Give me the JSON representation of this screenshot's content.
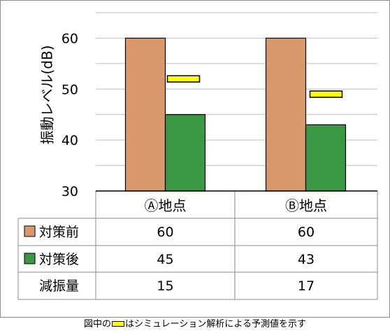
{
  "chart_data": {
    "type": "bar",
    "ylabel": "振動レベル(dB)",
    "ylim": [
      30,
      65
    ],
    "yticks": [
      "30",
      "40",
      "50",
      "60"
    ],
    "grid": true,
    "categories": [
      "Ⓐ地点",
      "Ⓑ地点"
    ],
    "series": [
      {
        "name": "対策前",
        "values": [
          60,
          60
        ],
        "color": "#d9996a"
      },
      {
        "name": "対策後",
        "values": [
          45,
          43
        ],
        "color": "#3a9845"
      }
    ],
    "simulation_predictions": [
      52,
      49
    ],
    "simulation_color": "#ffff00",
    "table": {
      "rows": [
        {
          "label": "対策前",
          "swatch": "#d9996a",
          "values": [
            "60",
            "60"
          ]
        },
        {
          "label": "対策後",
          "swatch": "#3a9845",
          "values": [
            "45",
            "43"
          ]
        },
        {
          "label": "減振量",
          "swatch": "",
          "values": [
            "15",
            "17"
          ]
        }
      ]
    }
  },
  "caption": {
    "before": "図中の",
    "after": "はシミュレーション解析による予測値を示す"
  }
}
